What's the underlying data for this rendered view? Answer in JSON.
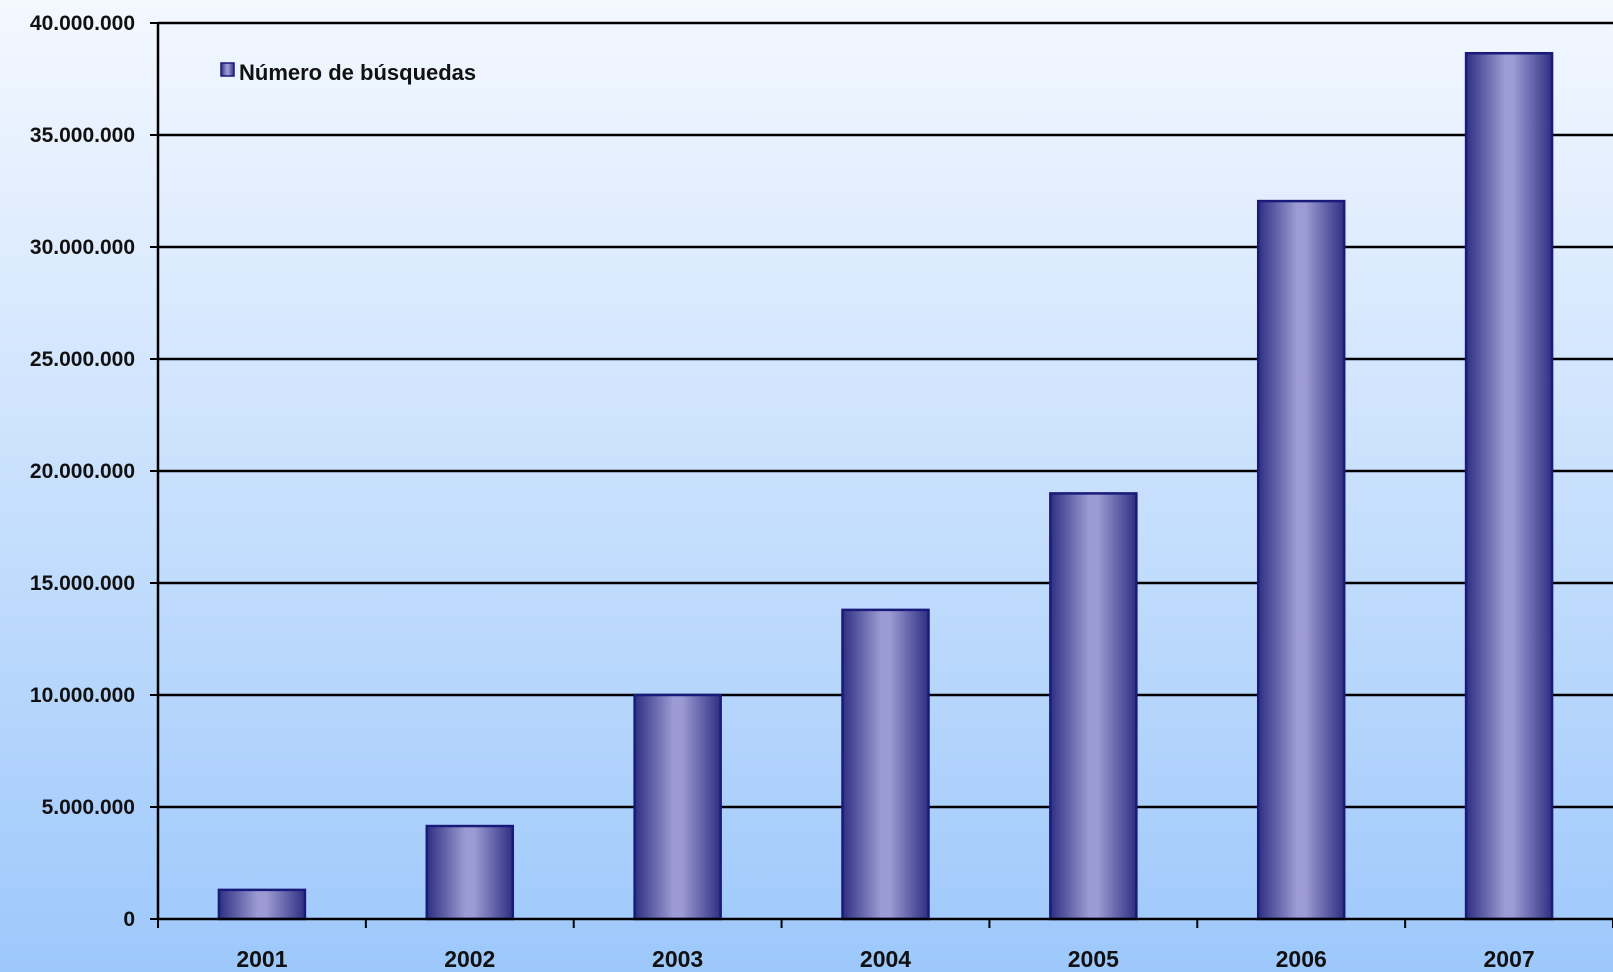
{
  "chart_data": {
    "type": "bar",
    "categories": [
      "2001",
      "2002",
      "2003",
      "2004",
      "2005",
      "2006",
      "2007"
    ],
    "series": [
      {
        "name": "Número de búsquedas",
        "values": [
          1300000,
          4150000,
          10000000,
          13800000,
          19000000,
          32050000,
          38650000
        ]
      }
    ],
    "y_tick_labels": [
      "0",
      "5.000.000",
      "10.000.000",
      "15.000.000",
      "20.000.000",
      "25.000.000",
      "30.000.000",
      "35.000.000",
      "40.000.000"
    ],
    "ylim": [
      0,
      40000000
    ],
    "y_tick_step": 5000000,
    "grid": true,
    "legend": "top-left",
    "colors": {
      "bar_edge": "#1a1a7a",
      "bar_dark": "#2e2f82",
      "bar_light": "#9c9bd4",
      "bg_top": "#f4f8ff",
      "bg_bottom": "#9dc8fb",
      "grid": "#000000"
    }
  }
}
